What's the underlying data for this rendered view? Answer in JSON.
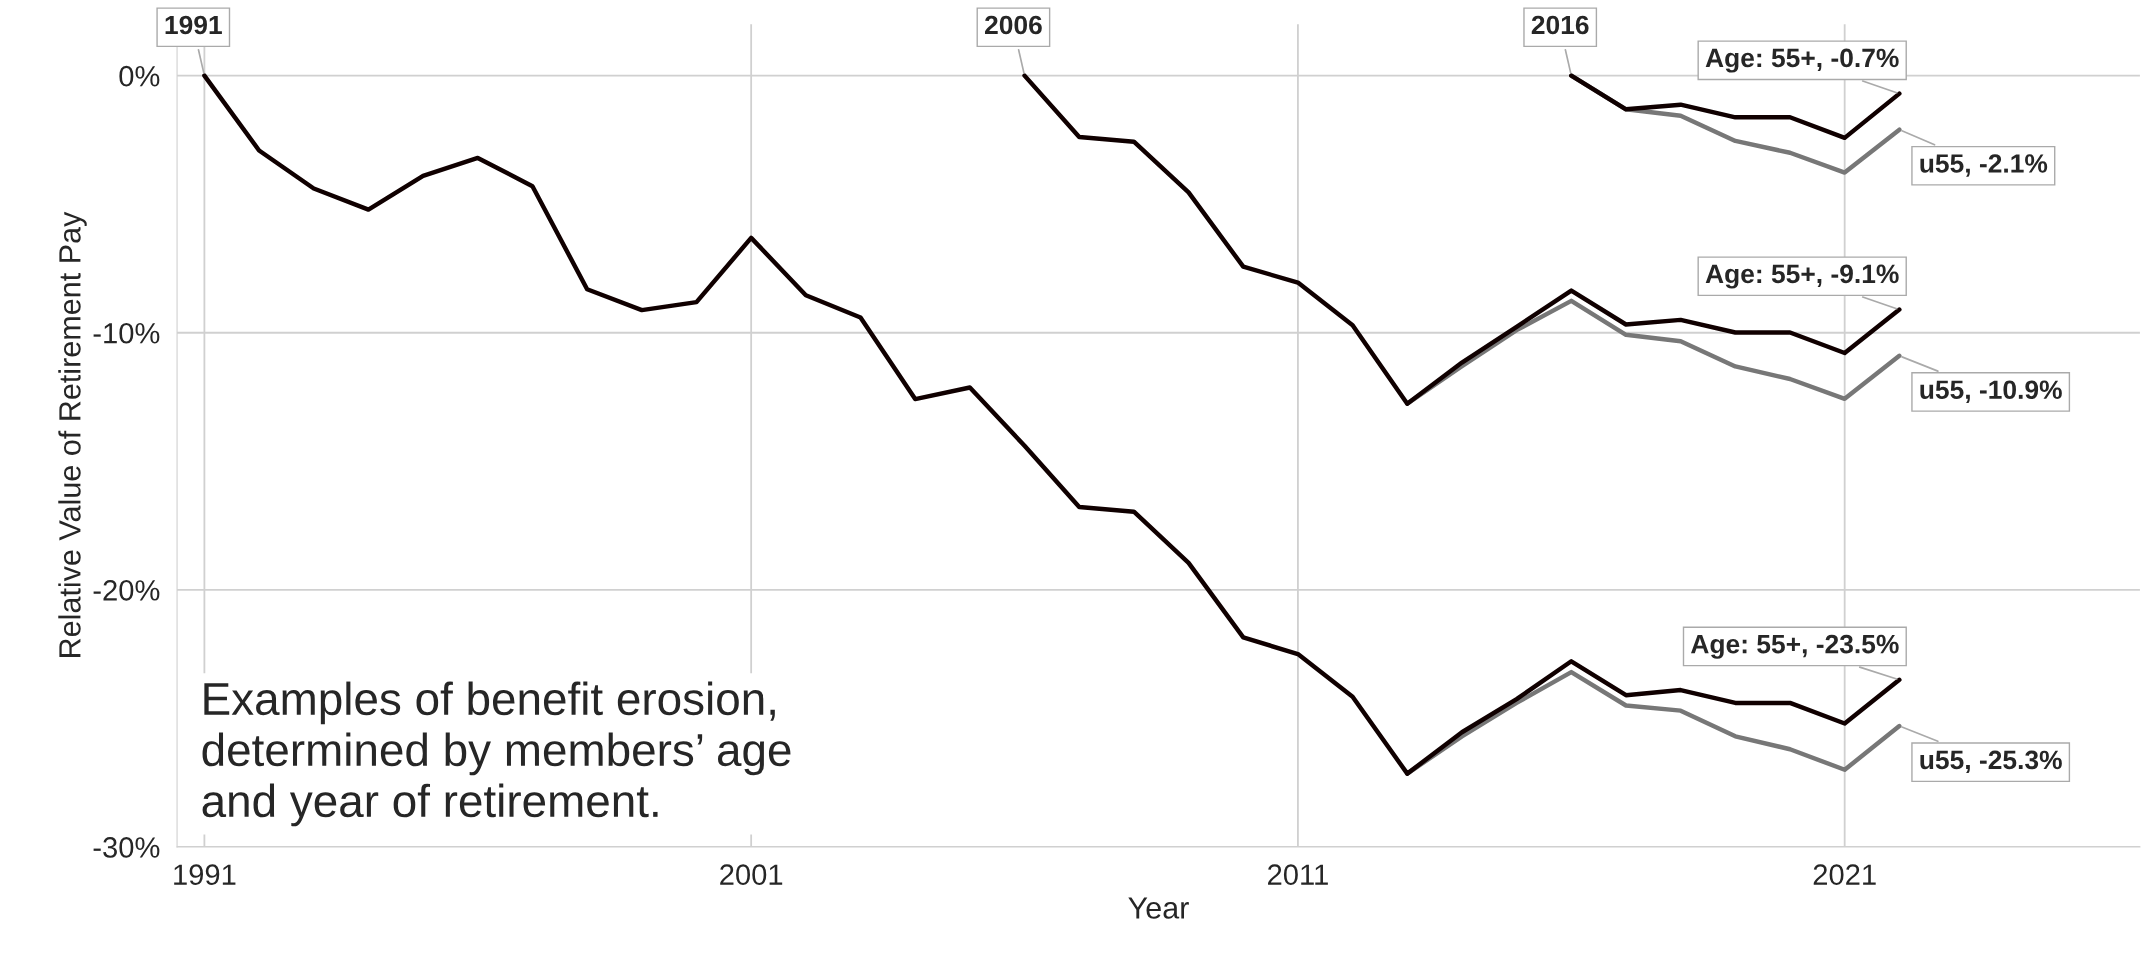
{
  "chart_data": {
    "type": "line",
    "xlabel": "Year",
    "ylabel": "Relative Value of Retirement Pay",
    "xlim": [
      1990.5,
      2026.4
    ],
    "xticks": [
      1991,
      2001,
      2011,
      2021
    ],
    "ylim": [
      -30,
      2
    ],
    "yticks": [
      {
        "value": 0,
        "label": "0%"
      },
      {
        "value": -10,
        "label": "-10%"
      },
      {
        "value": -20,
        "label": "-20%"
      },
      {
        "value": -30,
        "label": "-30%"
      }
    ],
    "grid": true,
    "legend": false,
    "series": [
      {
        "color": "#777777",
        "x": [
          2013,
          2014,
          2015,
          2016,
          2017,
          2018,
          2019,
          2020,
          2021,
          2022
        ],
        "values": [
          -27.15,
          -25.7,
          -24.4,
          -23.2,
          -24.5,
          -24.7,
          -25.7,
          -26.2,
          -27.0,
          -25.3
        ]
      },
      {
        "color": "#777777",
        "x": [
          2013,
          2014,
          2015,
          2016,
          2017,
          2018,
          2019,
          2020,
          2021,
          2022
        ],
        "values": [
          -12.76,
          -11.3,
          -9.9,
          -8.76,
          -10.08,
          -10.33,
          -11.31,
          -11.8,
          -12.57,
          -10.9
        ]
      },
      {
        "color": "#777777",
        "x": [
          2016,
          2017,
          2018,
          2019,
          2020,
          2021,
          2022
        ],
        "values": [
          0,
          -1.31,
          -1.56,
          -2.54,
          -3.0,
          -3.77,
          -2.1
        ]
      },
      {
        "color": "#100000",
        "x": [
          1991,
          1992,
          1993,
          1994,
          1995,
          1996,
          1997,
          1998,
          1999,
          2000,
          2001,
          2002,
          2003,
          2004,
          2005,
          2006,
          2007,
          2008,
          2009,
          2010,
          2011,
          2012,
          2013,
          2014,
          2015,
          2016,
          2017,
          2018,
          2019,
          2020,
          2021,
          2022
        ],
        "values": [
          0,
          -2.91,
          -4.39,
          -5.21,
          -3.9,
          -3.2,
          -4.3,
          -8.31,
          -9.12,
          -8.81,
          -6.31,
          -8.54,
          -9.41,
          -12.58,
          -12.13,
          -14.4,
          -16.78,
          -16.96,
          -18.95,
          -21.85,
          -22.5,
          -24.16,
          -27.15,
          -25.54,
          -24.25,
          -22.78,
          -24.1,
          -23.9,
          -24.4,
          -24.4,
          -25.2,
          -23.5
        ]
      },
      {
        "color": "#100000",
        "x": [
          2006,
          2007,
          2008,
          2009,
          2010,
          2011,
          2012,
          2013,
          2014,
          2015,
          2016,
          2017,
          2018,
          2019,
          2020,
          2021,
          2022
        ],
        "values": [
          0,
          -2.39,
          -2.57,
          -4.54,
          -7.43,
          -8.05,
          -9.71,
          -12.76,
          -11.16,
          -9.77,
          -8.36,
          -9.68,
          -9.5,
          -9.99,
          -9.99,
          -10.79,
          -9.1
        ]
      },
      {
        "color": "#100000",
        "x": [
          2016,
          2017,
          2018,
          2019,
          2020,
          2021,
          2022
        ],
        "values": [
          0,
          -1.31,
          -1.13,
          -1.62,
          -1.62,
          -2.42,
          -0.7
        ]
      }
    ],
    "annotations": [
      {
        "text": "1991",
        "x": 1991,
        "y": 0
      },
      {
        "text": "2006",
        "x": 2006,
        "y": 0
      },
      {
        "text": "2016",
        "x": 2016,
        "y": 0
      },
      {
        "text": "Age: 55+, -0.7%",
        "x": 2022,
        "y": -0.7
      },
      {
        "text": "u55, -2.1%",
        "x": 2022,
        "y": -2.1
      },
      {
        "text": "Age: 55+, -9.1%",
        "x": 2022,
        "y": -9.1
      },
      {
        "text": "u55, -10.9%",
        "x": 2022,
        "y": -10.9
      },
      {
        "text": "Age: 55+, -23.5%",
        "x": 2022,
        "y": -23.5
      },
      {
        "text": "u55, -25.3%",
        "x": 2022,
        "y": -25.3
      },
      "Examples of benefit erosion,\ndetermined by members’ age\nand year of retirement."
    ]
  }
}
